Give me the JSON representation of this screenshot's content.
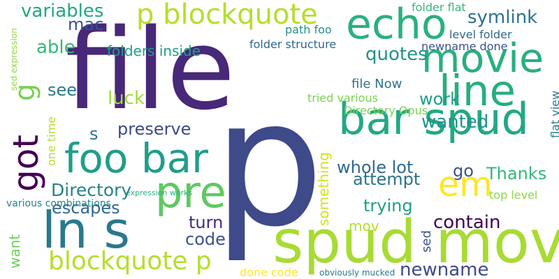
{
  "words": [
    {
      "id": "file",
      "text": "file",
      "color": "#482878",
      "vertical": false
    },
    {
      "id": "p",
      "text": "p",
      "color": "#3e4a89",
      "vertical": false
    },
    {
      "id": "spud-mov",
      "text": "spud mov",
      "color": "#a8db34",
      "vertical": false
    },
    {
      "id": "bar-spud",
      "text": "bar spud",
      "color": "#22a884",
      "vertical": false
    },
    {
      "id": "foo-bar",
      "text": "foo bar",
      "color": "#1f9e89",
      "vertical": false
    },
    {
      "id": "ln-s",
      "text": "ln s",
      "color": "#2a788e",
      "vertical": false
    },
    {
      "id": "got",
      "text": "got",
      "color": "#440154",
      "vertical": true
    },
    {
      "id": "echo",
      "text": "echo",
      "color": "#2ab07f",
      "vertical": false
    },
    {
      "id": "movie",
      "text": "movie",
      "color": "#29af7f",
      "vertical": false
    },
    {
      "id": "line",
      "text": "line",
      "color": "#27ad81",
      "vertical": false
    },
    {
      "id": "pre",
      "text": "pre",
      "color": "#5ec962",
      "vertical": false
    },
    {
      "id": "em",
      "text": "em",
      "color": "#fde725",
      "vertical": false
    },
    {
      "id": "p-blockquote",
      "text": "p blockquote",
      "color": "#b5de2b",
      "vertical": false
    },
    {
      "id": "g",
      "text": "g",
      "color": "#7ad151",
      "vertical": true
    },
    {
      "id": "blockquote-p",
      "text": "blockquote p",
      "color": "#b5de2b",
      "vertical": false
    },
    {
      "id": "variables",
      "text": "variables",
      "color": "#22a884",
      "vertical": false
    },
    {
      "id": "symlink",
      "text": "symlink",
      "color": "#2c728e",
      "vertical": false
    },
    {
      "id": "mac",
      "text": "mac",
      "color": "#3b528b",
      "vertical": false
    },
    {
      "id": "able",
      "text": "able",
      "color": "#35b779",
      "vertical": false
    },
    {
      "id": "folders-inside",
      "text": "folders inside",
      "color": "#1f9e89",
      "vertical": false
    },
    {
      "id": "quotes",
      "text": "quotes",
      "color": "#21918c",
      "vertical": false
    },
    {
      "id": "folder-flat",
      "text": "folder flat",
      "color": "#35b779",
      "vertical": false
    },
    {
      "id": "path-foo",
      "text": "path foo",
      "color": "#21918c",
      "vertical": false
    },
    {
      "id": "level-folder",
      "text": "level folder",
      "color": "#31688e",
      "vertical": false
    },
    {
      "id": "folder-structure",
      "text": "folder structure",
      "color": "#31688e",
      "vertical": false
    },
    {
      "id": "newname-done",
      "text": "newname done",
      "color": "#3b528b",
      "vertical": false
    },
    {
      "id": "see",
      "text": "see",
      "color": "#2a788e",
      "vertical": false
    },
    {
      "id": "luck",
      "text": "luck",
      "color": "#a0da39",
      "vertical": false
    },
    {
      "id": "file-now",
      "text": "file Now",
      "color": "#2c728e",
      "vertical": false
    },
    {
      "id": "work",
      "text": "work",
      "color": "#1f9e89",
      "vertical": false
    },
    {
      "id": "tried-various",
      "text": "tried various",
      "color": "#7ad151",
      "vertical": false
    },
    {
      "id": "directory-opus",
      "text": "Directory Opus",
      "color": "#7ad151",
      "vertical": false
    },
    {
      "id": "flat-view",
      "text": "flat view",
      "color": "#277f8e",
      "vertical": true
    },
    {
      "id": "preserve",
      "text": "preserve",
      "color": "#3e4a89",
      "vertical": false
    },
    {
      "id": "s",
      "text": "s",
      "color": "#2c728e",
      "vertical": false
    },
    {
      "id": "wanted",
      "text": "wanted",
      "color": "#21918c",
      "vertical": false
    },
    {
      "id": "whole-lot",
      "text": "whole lot",
      "color": "#31688e",
      "vertical": false
    },
    {
      "id": "something",
      "text": "something",
      "color": "#d2e21b",
      "vertical": true
    },
    {
      "id": "go",
      "text": "go",
      "color": "#3b528b",
      "vertical": false
    },
    {
      "id": "attempt",
      "text": "attempt",
      "color": "#2c728e",
      "vertical": false
    },
    {
      "id": "thanks",
      "text": "Thanks",
      "color": "#35b779",
      "vertical": false
    },
    {
      "id": "directory",
      "text": "Directory",
      "color": "#26828e",
      "vertical": false
    },
    {
      "id": "escapes",
      "text": "escapes",
      "color": "#31688e",
      "vertical": false
    },
    {
      "id": "trying",
      "text": "trying",
      "color": "#1f9e89",
      "vertical": false
    },
    {
      "id": "top-level",
      "text": "top level",
      "color": "#90d743",
      "vertical": false
    },
    {
      "id": "sed-expression",
      "text": "sed expression",
      "color": "#90d743",
      "vertical": true
    },
    {
      "id": "one-time",
      "text": "one time",
      "color": "#b5de2b",
      "vertical": true
    },
    {
      "id": "expression-works",
      "text": "expression works",
      "color": "#2ab07f",
      "vertical": false
    },
    {
      "id": "various-combinations",
      "text": "various combinations",
      "color": "#26828e",
      "vertical": false
    },
    {
      "id": "want",
      "text": "want",
      "color": "#6ece58",
      "vertical": true
    },
    {
      "id": "turn",
      "text": "turn",
      "color": "#472c7a",
      "vertical": false
    },
    {
      "id": "code",
      "text": "code",
      "color": "#3b528b",
      "vertical": false
    },
    {
      "id": "mov",
      "text": "mov",
      "color": "#b5de2b",
      "vertical": false
    },
    {
      "id": "sed",
      "text": "sed",
      "color": "#3b528b",
      "vertical": true
    },
    {
      "id": "contain",
      "text": "contain",
      "color": "#440154",
      "vertical": false
    },
    {
      "id": "newname",
      "text": "newname",
      "color": "#3e4a89",
      "vertical": false
    },
    {
      "id": "done-code",
      "text": "done code",
      "color": "#fde725",
      "vertical": false
    },
    {
      "id": "obviously-mucked",
      "text": "obviously mucked",
      "color": "#2a788e",
      "vertical": false
    }
  ]
}
